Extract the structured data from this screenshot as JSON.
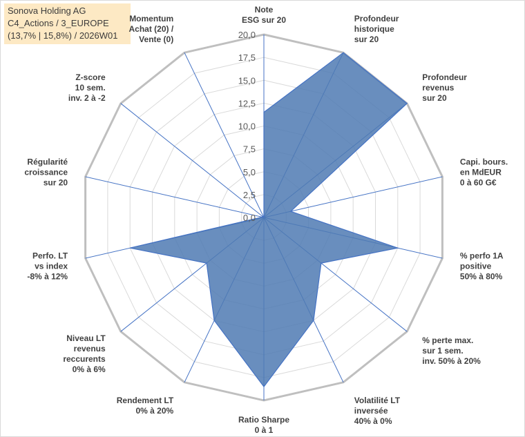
{
  "title_box": {
    "line1": "Sonova Holding AG",
    "line2": "C4_Actions / 3_EUROPE",
    "line3": "(13,7% | 15,8%) / 2026W01"
  },
  "chart_data": {
    "type": "radar",
    "rmin": 0,
    "rmax": 20,
    "tick_step": 2.5,
    "tick_labels": [
      "0,0",
      "2,5",
      "5,0",
      "7,5",
      "10,0",
      "12,5",
      "15,0",
      "17,5",
      "20,0"
    ],
    "gridlines": true,
    "legend": "none",
    "colors": {
      "fill": "#4f7ab3",
      "stroke": "#4472c4",
      "grid": "#d9d9d9",
      "outer": "#bfbfbf"
    },
    "axes": [
      {
        "label": [
          "Note",
          "ESG sur 20"
        ],
        "value": 11.5
      },
      {
        "label": [
          "Profondeur",
          "historique",
          "sur 20"
        ],
        "value": 20.0
      },
      {
        "label": [
          "Profondeur",
          "revenus",
          "sur 20"
        ],
        "value": 20.0
      },
      {
        "label": [
          "Capi. bours.",
          "en MdEUR",
          "0 à 60 G€"
        ],
        "value": 3.0
      },
      {
        "label": [
          "% perfo 1A",
          "positive",
          "50% à 80%"
        ],
        "value": 15.0
      },
      {
        "label": [
          "% perte max.",
          "sur 1 sem.",
          "inv. 50% à 20%"
        ],
        "value": 8.0
      },
      {
        "label": [
          "Volatilité LT",
          "inversée",
          "40% à 0%"
        ],
        "value": 12.5
      },
      {
        "label": [
          "Ratio Sharpe",
          "0 à 1"
        ],
        "value": 18.5
      },
      {
        "label": [
          "Rendement LT",
          "0% à 20%"
        ],
        "value": 12.5
      },
      {
        "label": [
          "Niveau LT",
          "revenus",
          "reccurents",
          "0% à 6%"
        ],
        "value": 8.0
      },
      {
        "label": [
          "Perfo. LT",
          "vs index",
          "-8% à 12%"
        ],
        "value": 15.0
      },
      {
        "label": [
          "Régularité",
          "croissance",
          "sur 20"
        ],
        "value": 0.2
      },
      {
        "label": [
          "Z-score",
          "10 sem.",
          "inv. 2 à -2"
        ],
        "value": 0.2
      },
      {
        "label": [
          "Momentum",
          "Achat (20) /",
          "Vente (0)"
        ],
        "value": 0.0
      }
    ]
  }
}
